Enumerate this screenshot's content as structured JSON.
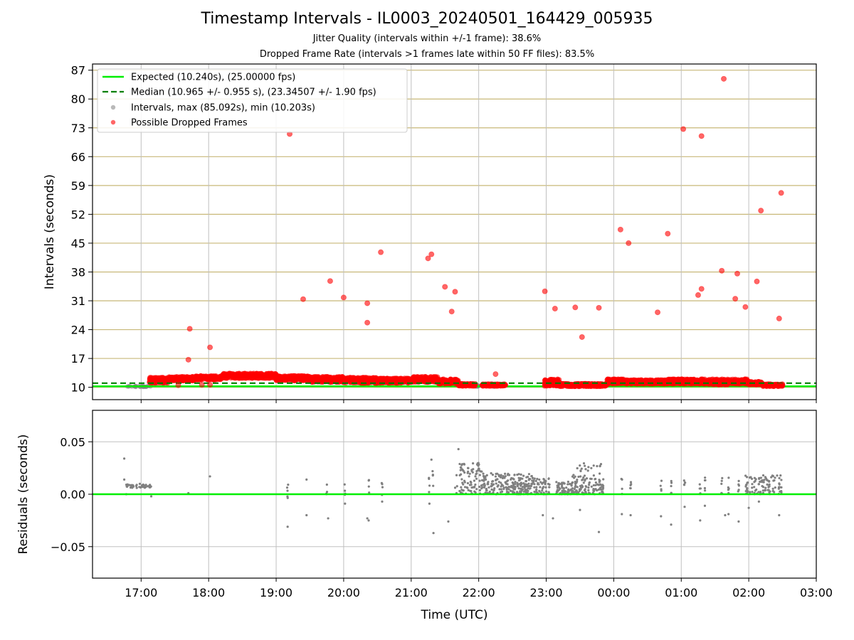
{
  "figure": {
    "title": "Timestamp Intervals - IL0003_20240501_164429_005935",
    "subtitle1": "Jitter Quality (intervals within +/-1 frame): 38.6%",
    "subtitle2": "Dropped Frame Rate (intervals >1 frames late within 50 FF files): 83.5%"
  },
  "colors": {
    "expected": "#00ee00",
    "median": "#008000",
    "intervals": "#808080",
    "dropped": "#ff0000",
    "hgrid": "#c8b878",
    "vgrid": "#c0c0c0"
  },
  "chart_data": [
    {
      "type": "scatter",
      "title": "",
      "xlabel": "",
      "ylabel": "Intervals (seconds)",
      "x_unit": "hours since 00:00 UTC, 2024-05-01 (values above 24 are after midnight)",
      "xlim": [
        16.28,
        27.0
      ],
      "ylim": [
        7.0,
        88.5
      ],
      "yticks": [
        10,
        17,
        24,
        31,
        38,
        45,
        52,
        59,
        66,
        73,
        80,
        87
      ],
      "xticks": [
        17,
        18,
        19,
        20,
        21,
        22,
        23,
        24,
        25,
        26,
        27
      ],
      "xtick_labels": [
        "17:00",
        "18:00",
        "19:00",
        "20:00",
        "21:00",
        "22:00",
        "23:00",
        "00:00",
        "01:00",
        "02:00",
        "03:00"
      ],
      "grid": {
        "horizontal": true,
        "vertical": true
      },
      "legend_position": "top-left",
      "expected": {
        "label": "Expected (10.240s), (25.00000 fps)",
        "y": 10.24,
        "x": [
          16.28,
          27.0
        ]
      },
      "median": {
        "label": "Median (10.965 +/- 0.955 s), (23.34507 +/- 1.90 fps)",
        "y": 11.0,
        "x": [
          16.28,
          27.0
        ]
      },
      "intervals_series": {
        "label": "Intervals, max (85.092s), min (10.203s)",
        "segments": [
          [
            16.75,
            17.15,
            10.2
          ],
          [
            21.95,
            22.0,
            10.3
          ],
          [
            22.2,
            22.3,
            10.3
          ]
        ]
      },
      "dropped_series": {
        "label": "Possible Dropped Frames",
        "bands": [
          [
            17.12,
            17.4,
            11.0,
            12.4
          ],
          [
            17.4,
            17.8,
            11.6,
            12.6
          ],
          [
            17.8,
            18.2,
            11.8,
            12.8
          ],
          [
            18.2,
            18.6,
            12.2,
            13.4
          ],
          [
            18.6,
            19.0,
            12.2,
            13.4
          ],
          [
            19.0,
            19.5,
            11.6,
            12.8
          ],
          [
            19.5,
            20.0,
            11.2,
            12.6
          ],
          [
            20.0,
            20.5,
            11.0,
            12.4
          ],
          [
            20.5,
            21.0,
            11.0,
            12.2
          ],
          [
            21.0,
            21.4,
            11.2,
            12.6
          ],
          [
            21.4,
            21.7,
            10.8,
            12.0
          ],
          [
            21.7,
            21.95,
            10.3,
            10.9
          ],
          [
            22.05,
            22.4,
            10.3,
            10.8
          ],
          [
            22.97,
            23.2,
            10.3,
            12.0
          ],
          [
            23.2,
            23.9,
            10.2,
            10.9
          ],
          [
            23.9,
            24.2,
            10.8,
            12.0
          ],
          [
            24.2,
            24.8,
            10.8,
            11.8
          ],
          [
            24.8,
            25.4,
            10.8,
            12.0
          ],
          [
            25.4,
            25.7,
            10.6,
            12.0
          ],
          [
            25.7,
            26.0,
            10.8,
            12.0
          ],
          [
            26.0,
            26.2,
            10.6,
            11.4
          ],
          [
            26.2,
            26.5,
            10.2,
            10.8
          ]
        ],
        "points": [
          [
            17.7,
            16.7
          ],
          [
            17.72,
            24.2
          ],
          [
            18.02,
            19.7
          ],
          [
            17.55,
            10.5
          ],
          [
            17.9,
            10.6
          ],
          [
            18.02,
            10.6
          ],
          [
            19.2,
            71.5
          ],
          [
            19.4,
            31.4
          ],
          [
            19.8,
            35.8
          ],
          [
            20.0,
            31.8
          ],
          [
            20.35,
            30.4
          ],
          [
            20.35,
            25.7
          ],
          [
            20.55,
            42.8
          ],
          [
            21.25,
            41.3
          ],
          [
            21.3,
            42.3
          ],
          [
            21.5,
            34.4
          ],
          [
            21.6,
            28.4
          ],
          [
            21.65,
            33.2
          ],
          [
            22.25,
            13.2
          ],
          [
            22.98,
            33.3
          ],
          [
            23.13,
            29.1
          ],
          [
            23.43,
            29.4
          ],
          [
            23.53,
            22.2
          ],
          [
            23.78,
            29.3
          ],
          [
            24.1,
            48.3
          ],
          [
            24.22,
            45.0
          ],
          [
            24.65,
            28.2
          ],
          [
            24.8,
            47.3
          ],
          [
            25.03,
            72.7
          ],
          [
            25.3,
            71.0
          ],
          [
            25.25,
            32.4
          ],
          [
            25.3,
            33.9
          ],
          [
            25.6,
            38.3
          ],
          [
            25.63,
            84.9
          ],
          [
            25.8,
            31.5
          ],
          [
            25.83,
            37.6
          ],
          [
            25.95,
            29.5
          ],
          [
            26.12,
            35.7
          ],
          [
            26.18,
            52.9
          ],
          [
            26.45,
            26.7
          ],
          [
            26.48,
            57.2
          ],
          [
            26.45,
            10.5
          ],
          [
            26.5,
            10.5
          ]
        ]
      }
    },
    {
      "type": "scatter",
      "title": "",
      "xlabel": "Time (UTC)",
      "ylabel": "Residuals (seconds)",
      "x_unit": "hours since 00:00 UTC, 2024-05-01 (values above 24 are after midnight)",
      "xlim": [
        16.28,
        27.0
      ],
      "ylim": [
        -0.08,
        0.08
      ],
      "yticks": [
        -0.05,
        0.0,
        0.05
      ],
      "ytick_labels": [
        "−0.05",
        "0.00",
        "0.05"
      ],
      "xticks": [
        17,
        18,
        19,
        20,
        21,
        22,
        23,
        24,
        25,
        26,
        27
      ],
      "xtick_labels": [
        "17:00",
        "18:00",
        "19:00",
        "20:00",
        "21:00",
        "22:00",
        "23:00",
        "00:00",
        "01:00",
        "02:00",
        "03:00"
      ],
      "grid": {
        "horizontal": true,
        "vertical": true
      },
      "zero_line": 0.0,
      "clusters": [
        [
          16.78,
          17.15,
          0.006,
          0.01,
          40
        ],
        [
          21.65,
          22.05,
          0.0,
          0.03,
          90
        ],
        [
          22.05,
          22.8,
          0.0,
          0.02,
          170
        ],
        [
          22.5,
          23.05,
          0.0,
          0.015,
          110
        ],
        [
          23.15,
          23.85,
          0.0,
          0.012,
          150
        ],
        [
          23.35,
          23.85,
          0.012,
          0.03,
          40
        ],
        [
          25.95,
          26.5,
          0.0,
          0.018,
          80
        ]
      ],
      "columns": [
        [
          19.17,
          -0.005,
          0.012,
          5
        ],
        [
          19.75,
          -0.003,
          0.014,
          4
        ],
        [
          20.02,
          -0.003,
          0.012,
          4
        ],
        [
          20.37,
          -0.003,
          0.014,
          4
        ],
        [
          20.57,
          -0.003,
          0.014,
          4
        ],
        [
          21.27,
          -0.003,
          0.016,
          4
        ],
        [
          21.32,
          0.0,
          0.022,
          4
        ],
        [
          24.12,
          0.0,
          0.016,
          4
        ],
        [
          24.25,
          0.0,
          0.016,
          5
        ],
        [
          24.7,
          0.0,
          0.016,
          4
        ],
        [
          24.85,
          0.0,
          0.016,
          5
        ],
        [
          25.05,
          0.0,
          0.016,
          5
        ],
        [
          25.28,
          0.0,
          0.014,
          5
        ],
        [
          25.35,
          0.0,
          0.016,
          5
        ],
        [
          25.6,
          0.0,
          0.016,
          6
        ],
        [
          25.7,
          0.0,
          0.016,
          5
        ],
        [
          25.85,
          0.0,
          0.014,
          5
        ],
        [
          25.98,
          0.0,
          0.014,
          5
        ],
        [
          26.15,
          0.0,
          0.016,
          5
        ],
        [
          26.3,
          0.0,
          0.016,
          6
        ],
        [
          26.45,
          0.0,
          0.014,
          5
        ]
      ],
      "points": [
        [
          16.75,
          0.034
        ],
        [
          16.75,
          0.014
        ],
        [
          16.78,
          0.0
        ],
        [
          17.15,
          -0.002
        ],
        [
          17.7,
          0.001
        ],
        [
          18.02,
          0.017
        ],
        [
          19.17,
          -0.031
        ],
        [
          19.45,
          0.014
        ],
        [
          19.45,
          -0.02
        ],
        [
          19.77,
          -0.023
        ],
        [
          20.02,
          -0.009
        ],
        [
          20.37,
          -0.025
        ],
        [
          20.35,
          -0.023
        ],
        [
          20.57,
          -0.007
        ],
        [
          21.27,
          -0.009
        ],
        [
          21.3,
          0.033
        ],
        [
          21.33,
          -0.037
        ],
        [
          21.55,
          -0.026
        ],
        [
          21.7,
          0.043
        ],
        [
          22.95,
          -0.02
        ],
        [
          23.1,
          -0.023
        ],
        [
          23.5,
          -0.015
        ],
        [
          23.78,
          -0.036
        ],
        [
          24.12,
          -0.019
        ],
        [
          24.25,
          -0.02
        ],
        [
          24.7,
          -0.021
        ],
        [
          24.85,
          -0.029
        ],
        [
          25.05,
          -0.012
        ],
        [
          25.28,
          -0.025
        ],
        [
          25.35,
          -0.011
        ],
        [
          25.65,
          -0.02
        ],
        [
          25.7,
          -0.019
        ],
        [
          25.85,
          -0.026
        ],
        [
          26.0,
          -0.013
        ],
        [
          26.15,
          -0.007
        ],
        [
          26.45,
          -0.02
        ]
      ]
    }
  ]
}
